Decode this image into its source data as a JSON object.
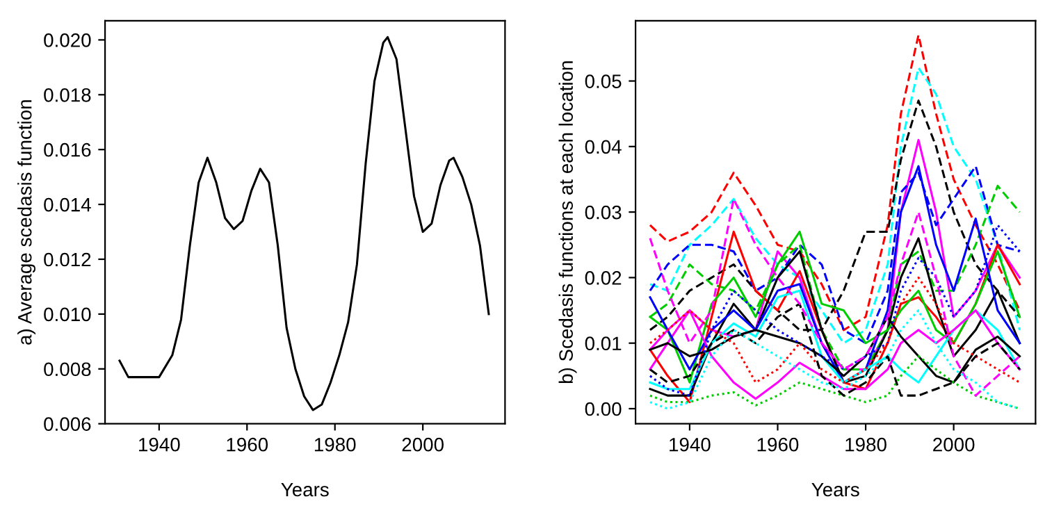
{
  "chart_data": [
    {
      "type": "line",
      "xlabel": "Years",
      "ylabel": "a) Average scedasis function",
      "xlim": [
        1927.7,
        2018.7
      ],
      "ylim": [
        0.006,
        0.0207
      ],
      "xticks": [
        1940,
        1960,
        1980,
        2000
      ],
      "yticks": [
        {
          "value": 0.006,
          "label": "0.006"
        },
        {
          "value": 0.008,
          "label": "0.008"
        },
        {
          "value": 0.01,
          "label": "0.010"
        },
        {
          "value": 0.012,
          "label": "0.012"
        },
        {
          "value": 0.014,
          "label": "0.014"
        },
        {
          "value": 0.016,
          "label": "0.016"
        },
        {
          "value": 0.018,
          "label": "0.018"
        },
        {
          "value": 0.02,
          "label": "0.020"
        }
      ],
      "grid": false,
      "x": [
        1931,
        1933,
        1935,
        1940,
        1943,
        1945,
        1947,
        1949,
        1951,
        1953,
        1955,
        1957,
        1959,
        1961,
        1963,
        1965,
        1967,
        1969,
        1971,
        1973,
        1975,
        1977,
        1979,
        1981,
        1983,
        1985,
        1987,
        1989,
        1991,
        1992,
        1994,
        1996,
        1998,
        2000,
        2002,
        2004,
        2006,
        2007,
        2009,
        2011,
        2013,
        2015
      ],
      "series": [
        {
          "color": "#000000",
          "line_style": "solid",
          "values": [
            0.0083,
            0.0077,
            0.0077,
            0.0077,
            0.0085,
            0.0098,
            0.0125,
            0.0148,
            0.0157,
            0.0148,
            0.0135,
            0.0131,
            0.0134,
            0.0145,
            0.0153,
            0.0148,
            0.0125,
            0.0095,
            0.008,
            0.007,
            0.0065,
            0.0067,
            0.0075,
            0.0085,
            0.0097,
            0.0118,
            0.0155,
            0.0185,
            0.0199,
            0.0201,
            0.0193,
            0.0168,
            0.0143,
            0.013,
            0.0133,
            0.0147,
            0.0156,
            0.0157,
            0.015,
            0.014,
            0.0125,
            0.01
          ]
        }
      ]
    },
    {
      "type": "line",
      "xlabel": "Years",
      "ylabel": "b) Scedasis functions at each location",
      "xlim": [
        1927.7,
        2018.6
      ],
      "ylim": [
        -0.0023,
        0.0592
      ],
      "xticks": [
        1940,
        1960,
        1980,
        2000
      ],
      "yticks": [
        {
          "value": 0.0,
          "label": "0.00"
        },
        {
          "value": 0.01,
          "label": "0.01"
        },
        {
          "value": 0.02,
          "label": "0.02"
        },
        {
          "value": 0.03,
          "label": "0.03"
        },
        {
          "value": 0.04,
          "label": "0.04"
        },
        {
          "value": 0.05,
          "label": "0.05"
        }
      ],
      "grid": false,
      "x": [
        1931,
        1935,
        1940,
        1945,
        1950,
        1955,
        1960,
        1965,
        1970,
        1975,
        1980,
        1985,
        1988,
        1992,
        1996,
        2000,
        2005,
        2010,
        2015
      ],
      "series": [
        {
          "color": "#ff0000",
          "line_style": "dashed",
          "values": [
            0.028,
            0.0255,
            0.027,
            0.03,
            0.036,
            0.031,
            0.025,
            0.024,
            0.019,
            0.012,
            0.014,
            0.028,
            0.045,
            0.057,
            0.045,
            0.035,
            0.028,
            0.022,
            0.015
          ]
        },
        {
          "color": "#00ffff",
          "line_style": "dashed",
          "values": [
            0.019,
            0.018,
            0.025,
            0.028,
            0.032,
            0.026,
            0.022,
            0.02,
            0.015,
            0.01,
            0.012,
            0.022,
            0.04,
            0.052,
            0.048,
            0.04,
            0.035,
            0.025,
            0.012
          ]
        },
        {
          "color": "#000000",
          "line_style": "dashed",
          "values": [
            0.012,
            0.014,
            0.018,
            0.02,
            0.022,
            0.018,
            0.015,
            0.012,
            0.012,
            0.018,
            0.027,
            0.027,
            0.038,
            0.047,
            0.04,
            0.03,
            0.022,
            0.018,
            0.014
          ]
        },
        {
          "color": "#ff00ff",
          "line_style": "solid",
          "values": [
            0.006,
            0.01,
            0.015,
            0.012,
            0.011,
            0.012,
            0.024,
            0.02,
            0.01,
            0.006,
            0.006,
            0.012,
            0.03,
            0.041,
            0.03,
            0.014,
            0.018,
            0.025,
            0.02
          ]
        },
        {
          "color": "#0000ff",
          "line_style": "dashed",
          "values": [
            0.018,
            0.022,
            0.025,
            0.025,
            0.024,
            0.018,
            0.02,
            0.025,
            0.022,
            0.012,
            0.01,
            0.018,
            0.033,
            0.036,
            0.028,
            0.032,
            0.037,
            0.025,
            0.024
          ]
        },
        {
          "color": "#00cd00",
          "line_style": "dashed",
          "values": [
            0.014,
            0.016,
            0.022,
            0.019,
            0.018,
            0.015,
            0.022,
            0.025,
            0.012,
            0.006,
            0.006,
            0.012,
            0.022,
            0.024,
            0.018,
            0.018,
            0.025,
            0.034,
            0.03
          ]
        },
        {
          "color": "#ff0000",
          "line_style": "solid",
          "values": [
            0.009,
            0.005,
            0.001,
            0.014,
            0.027,
            0.018,
            0.015,
            0.021,
            0.012,
            0.004,
            0.003,
            0.01,
            0.016,
            0.017,
            0.014,
            0.01,
            0.016,
            0.025,
            0.019
          ]
        },
        {
          "color": "#000000",
          "line_style": "solid",
          "values": [
            0.003,
            0.002,
            0.002,
            0.01,
            0.016,
            0.012,
            0.02,
            0.024,
            0.012,
            0.004,
            0.005,
            0.012,
            0.02,
            0.026,
            0.016,
            0.008,
            0.012,
            0.018,
            0.01
          ]
        },
        {
          "color": "#00cd00",
          "line_style": "solid",
          "values": [
            0.014,
            0.012,
            0.004,
            0.016,
            0.02,
            0.014,
            0.022,
            0.027,
            0.016,
            0.015,
            0.01,
            0.012,
            0.015,
            0.018,
            0.012,
            0.01,
            0.016,
            0.024,
            0.014
          ]
        },
        {
          "color": "#0000ff",
          "line_style": "solid",
          "values": [
            0.017,
            0.012,
            0.006,
            0.012,
            0.015,
            0.012,
            0.018,
            0.019,
            0.01,
            0.004,
            0.006,
            0.015,
            0.03,
            0.037,
            0.025,
            0.018,
            0.029,
            0.015,
            0.01
          ]
        },
        {
          "color": "#00ffff",
          "line_style": "solid",
          "values": [
            0.004,
            0.003,
            0.003,
            0.01,
            0.013,
            0.011,
            0.017,
            0.018,
            0.008,
            0.004,
            0.006,
            0.008,
            0.006,
            0.004,
            0.008,
            0.012,
            0.015,
            0.012,
            0.006
          ]
        },
        {
          "color": "#ff00ff",
          "line_style": "solid",
          "values": [
            0.009,
            0.012,
            0.015,
            0.008,
            0.004,
            0.0015,
            0.004,
            0.007,
            0.005,
            0.003,
            0.003,
            0.006,
            0.01,
            0.012,
            0.01,
            0.012,
            0.015,
            0.01,
            0.006
          ]
        },
        {
          "color": "#000000",
          "line_style": "solid",
          "values": [
            0.009,
            0.01,
            0.008,
            0.009,
            0.011,
            0.012,
            0.011,
            0.01,
            0.008,
            0.005,
            0.008,
            0.014,
            0.011,
            0.008,
            0.005,
            0.004,
            0.009,
            0.011,
            0.008
          ]
        },
        {
          "color": "#00cd00",
          "line_style": "dotted",
          "values": [
            0.002,
            0.001,
            0.001,
            0.002,
            0.0025,
            0.0005,
            0.002,
            0.004,
            0.003,
            0.002,
            0.001,
            0.002,
            0.005,
            0.008,
            0.006,
            0.004,
            0.002,
            0.001,
            0.0
          ]
        },
        {
          "color": "#0000ff",
          "line_style": "dotted",
          "values": [
            0.005,
            0.003,
            0.002,
            0.012,
            0.018,
            0.015,
            0.012,
            0.01,
            0.008,
            0.006,
            0.008,
            0.01,
            0.018,
            0.023,
            0.02,
            0.014,
            0.018,
            0.028,
            0.024
          ]
        },
        {
          "color": "#ff0000",
          "line_style": "dotted",
          "values": [
            0.01,
            0.012,
            0.015,
            0.012,
            0.01,
            0.004,
            0.006,
            0.01,
            0.006,
            0.004,
            0.006,
            0.01,
            0.016,
            0.02,
            0.016,
            0.01,
            0.008,
            0.006,
            0.004
          ]
        },
        {
          "color": "#000000",
          "line_style": "dashed",
          "values": [
            0.006,
            0.004,
            0.005,
            0.01,
            0.012,
            0.01,
            0.014,
            0.016,
            0.005,
            0.002,
            0.004,
            0.008,
            0.002,
            0.002,
            0.003,
            0.004,
            0.008,
            0.01,
            0.006
          ]
        },
        {
          "color": "#ff00ff",
          "line_style": "dashed",
          "values": [
            0.026,
            0.018,
            0.01,
            0.015,
            0.032,
            0.025,
            0.02,
            0.016,
            0.01,
            0.006,
            0.008,
            0.014,
            0.022,
            0.03,
            0.02,
            0.008,
            0.002,
            0.005,
            0.008
          ]
        },
        {
          "color": "#00ffff",
          "line_style": "dotted",
          "values": [
            0.001,
            0.0,
            0.001,
            0.008,
            0.012,
            0.01,
            0.008,
            0.006,
            0.004,
            0.003,
            0.005,
            0.008,
            0.012,
            0.015,
            0.01,
            0.006,
            0.004,
            0.001,
            0.0
          ]
        }
      ]
    }
  ]
}
